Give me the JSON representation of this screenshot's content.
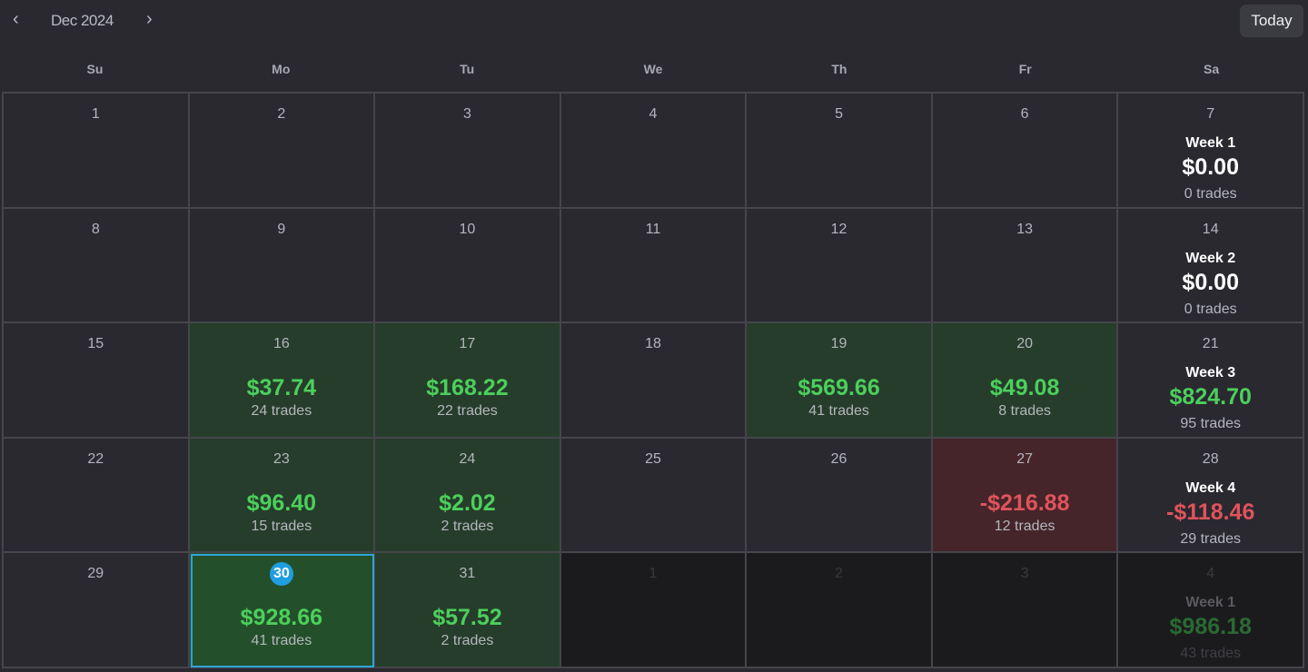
{
  "header": {
    "month_label": "Dec 2024",
    "prev_icon": "‹",
    "next_icon": "›",
    "today_label": "Today"
  },
  "weekdays": [
    "Su",
    "Mo",
    "Tu",
    "We",
    "Th",
    "Fr",
    "Sa"
  ],
  "colors": {
    "profit": "#4ccf5c",
    "loss": "#e0535b",
    "today_badge": "#1f9ee0"
  },
  "weeks": [
    {
      "days": [
        {
          "day": "1"
        },
        {
          "day": "2"
        },
        {
          "day": "3"
        },
        {
          "day": "4"
        },
        {
          "day": "5"
        },
        {
          "day": "6"
        },
        {
          "day": "7"
        }
      ],
      "summary": {
        "label": "Week 1",
        "pnl": "$0.00",
        "trades": "0 trades",
        "sign": "zero"
      }
    },
    {
      "days": [
        {
          "day": "8"
        },
        {
          "day": "9"
        },
        {
          "day": "10"
        },
        {
          "day": "11"
        },
        {
          "day": "12"
        },
        {
          "day": "13"
        },
        {
          "day": "14"
        }
      ],
      "summary": {
        "label": "Week 2",
        "pnl": "$0.00",
        "trades": "0 trades",
        "sign": "zero"
      }
    },
    {
      "days": [
        {
          "day": "15"
        },
        {
          "day": "16",
          "state": "profit",
          "pnl": "$37.74",
          "trades": "24 trades"
        },
        {
          "day": "17",
          "state": "profit",
          "pnl": "$168.22",
          "trades": "22 trades"
        },
        {
          "day": "18"
        },
        {
          "day": "19",
          "state": "profit",
          "pnl": "$569.66",
          "trades": "41 trades"
        },
        {
          "day": "20",
          "state": "profit",
          "pnl": "$49.08",
          "trades": "8 trades"
        },
        {
          "day": "21"
        }
      ],
      "summary": {
        "label": "Week 3",
        "pnl": "$824.70",
        "trades": "95 trades",
        "sign": "pos"
      }
    },
    {
      "days": [
        {
          "day": "22"
        },
        {
          "day": "23",
          "state": "profit",
          "pnl": "$96.40",
          "trades": "15 trades"
        },
        {
          "day": "24",
          "state": "profit",
          "pnl": "$2.02",
          "trades": "2 trades"
        },
        {
          "day": "25"
        },
        {
          "day": "26"
        },
        {
          "day": "27",
          "state": "loss",
          "pnl": "-$216.88",
          "trades": "12 trades"
        },
        {
          "day": "28"
        }
      ],
      "summary": {
        "label": "Week 4",
        "pnl": "-$118.46",
        "trades": "29 trades",
        "sign": "neg"
      }
    },
    {
      "days": [
        {
          "day": "29"
        },
        {
          "day": "30",
          "state": "today",
          "pnl": "$928.66",
          "trades": "41 trades"
        },
        {
          "day": "31",
          "state": "profit",
          "pnl": "$57.52",
          "trades": "2 trades"
        },
        {
          "day": "1",
          "state": "outside"
        },
        {
          "day": "2",
          "state": "outside"
        },
        {
          "day": "3",
          "state": "outside"
        },
        {
          "day": "4",
          "state": "outside"
        }
      ],
      "summary": {
        "label": "Week 1",
        "pnl": "$986.18",
        "trades": "43 trades",
        "sign": "pos"
      }
    }
  ]
}
